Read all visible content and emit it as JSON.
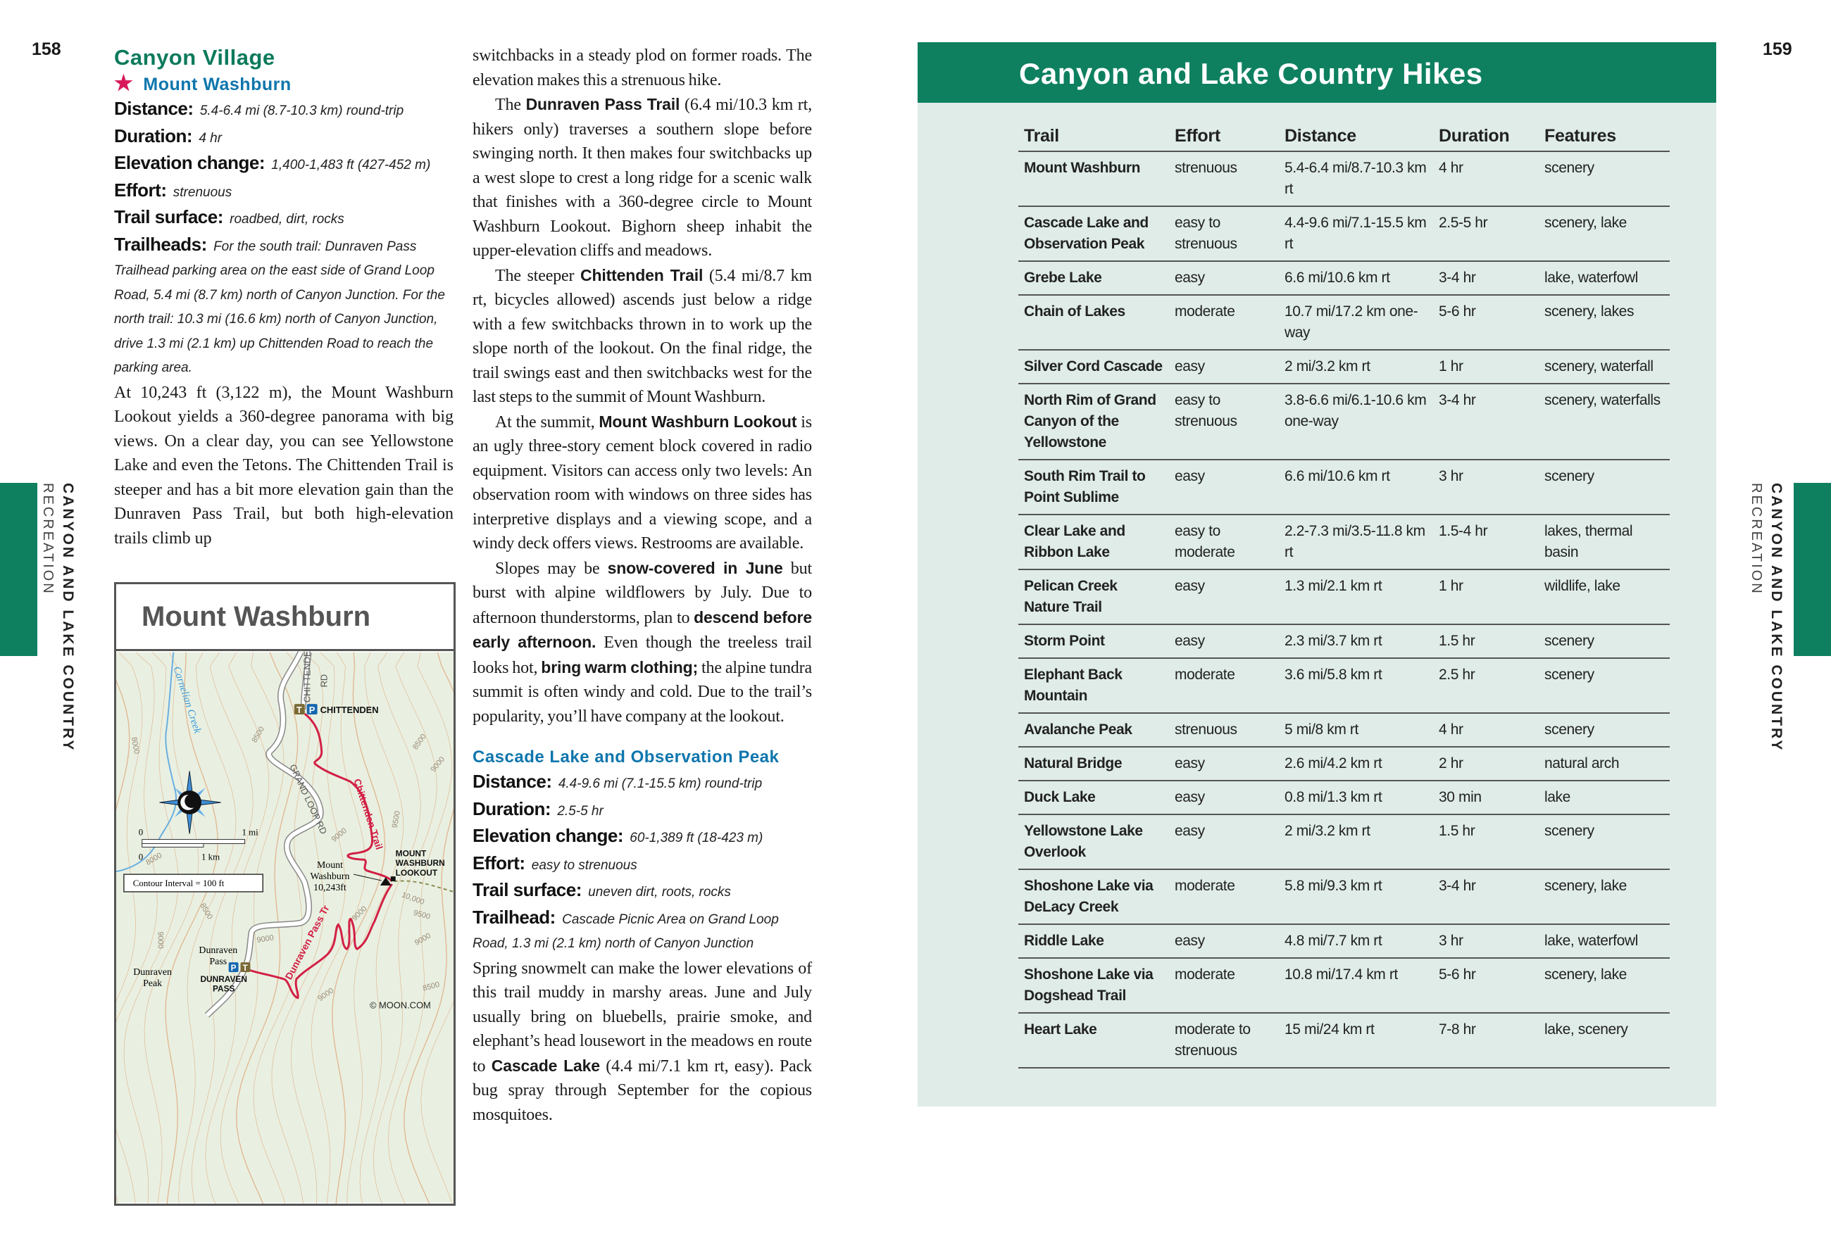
{
  "pages": {
    "left_number": "158",
    "right_number": "159"
  },
  "side_tab": {
    "chapter": "CANYON AND LAKE COUNTRY",
    "section": "RECREATION",
    "color": "#0e8060"
  },
  "left": {
    "section_title": "Canyon Village",
    "hike_title": "Mount Washburn",
    "star_icon": "star-icon",
    "specs": [
      {
        "label": "Distance:",
        "value": "5.4-6.4 mi (8.7-10.3 km) round-trip"
      },
      {
        "label": "Duration:",
        "value": "4 hr"
      },
      {
        "label": "Elevation change:",
        "value": "1,400-1,483 ft (427-452 m)"
      },
      {
        "label": "Effort:",
        "value": "strenuous"
      },
      {
        "label": "Trail surface:",
        "value": "roadbed, dirt, rocks"
      },
      {
        "label": "Trailheads:",
        "value": "For the south trail: Dunraven Pass Trailhead parking area on the east side of Grand Loop Road, 5.4 mi (8.7 km) north of Canyon Junction. For the north trail: 10.3 mi (16.6 km) north of Canyon Junction, drive 1.3 mi (2.1 km) up Chittenden Road to reach the parking area."
      }
    ],
    "paragraphs": [
      [
        {
          "text": "At 10,243 ft (3,122 m), the Mount Washburn Lookout yields a 360-degree panorama with big views. On a clear day, you can see Yellowstone Lake and even the Tetons. The Chittenden Trail is steeper and has a bit more elevation gain than the Dunraven Pass Trail, but both high-elevation trails climb up"
        }
      ]
    ]
  },
  "map": {
    "title": "Mount Washburn",
    "labels": {
      "creek": "Carnelian Creek",
      "chittenden_rd": "CHITTENDEN",
      "chittenden_rd2": "RD",
      "chittenden_th": "CHITTENDEN",
      "grand_loop": "GRAND LOOP RD",
      "chittenden_trail": "Chittenden Trail",
      "dunraven_trail": "Dunraven Pass Tr",
      "lookout1": "MOUNT",
      "lookout2": "WASHBURN",
      "lookout3": "LOOKOUT",
      "summit1": "Mount",
      "summit2": "Washburn",
      "summit3": "10,243ft",
      "pass1": "Dunraven",
      "pass2": "Pass",
      "pass_th1": "DUNRAVEN",
      "pass_th2": "PASS",
      "peak1": "Dunraven",
      "peak2": "Peak",
      "scale_zero": "0",
      "scale_mi": "1 mi",
      "scale_km": "1 km",
      "contour": "Contour Interval = 100 ft",
      "copyright": "© MOON.COM",
      "trailhead_icon": "T",
      "parking_icon": "P"
    },
    "elevations": [
      "8000",
      "8500",
      "8500",
      "9000",
      "9000",
      "9500",
      "8000",
      "8500",
      "9000",
      "9000",
      "10,000",
      "9500",
      "9000",
      "9000",
      "8500",
      "9000"
    ]
  },
  "middle": {
    "paragraphs": [
      [
        {
          "text": "switchbacks in a steady plod on former roads. The elevation makes this a strenuous hike."
        }
      ],
      [
        {
          "text": "The "
        },
        {
          "text": "Dunraven Pass Trail",
          "bold": true
        },
        {
          "text": " (6.4 mi/10.3 km rt, hikers only) traverses a southern slope before swinging north. It then makes four switchbacks up a west slope to crest a long ridge for a scenic walk that finishes with a 360-degree circle to Mount Washburn Lookout. Bighorn sheep inhabit the upper-elevation cliffs and meadows."
        }
      ],
      [
        {
          "text": "The steeper "
        },
        {
          "text": "Chittenden Trail",
          "bold": true
        },
        {
          "text": " (5.4 mi/8.7 km rt, bicycles allowed) ascends just below a ridge with a few switchbacks thrown in to work up the slope north of the lookout. On the final ridge, the trail swings east and then switchbacks west for the last steps to the summit of Mount Washburn."
        }
      ],
      [
        {
          "text": "At the summit, "
        },
        {
          "text": "Mount Washburn Lookout",
          "bold": true
        },
        {
          "text": " is an ugly three-story cement block covered in radio equipment. Visitors can access only two levels: An observation room with windows on three sides has interpretive displays and a viewing scope, and a windy deck offers views. Restrooms are available."
        }
      ],
      [
        {
          "text": "Slopes may be "
        },
        {
          "text": "snow-covered in June",
          "bold": true
        },
        {
          "text": " but burst with alpine wildflowers by July. Due to afternoon thunderstorms, plan to "
        },
        {
          "text": "descend before early afternoon.",
          "bold": true
        },
        {
          "text": " Even though the treeless trail looks hot, "
        },
        {
          "text": "bring warm clothing;",
          "bold": true
        },
        {
          "text": " the alpine tundra summit is often windy and cold. Due to the trail’s popularity, you’ll have company at the lookout."
        }
      ]
    ],
    "hike2_title": "Cascade Lake and Observation Peak",
    "specs": [
      {
        "label": "Distance:",
        "value": "4.4-9.6 mi (7.1-15.5 km) round-trip"
      },
      {
        "label": "Duration:",
        "value": "2.5-5 hr"
      },
      {
        "label": "Elevation change:",
        "value": "60-1,389 ft (18-423 m)"
      },
      {
        "label": "Effort:",
        "value": "easy to strenuous"
      },
      {
        "label": "Trail surface:",
        "value": "uneven dirt, roots, rocks"
      },
      {
        "label": "Trailhead:",
        "value": "Cascade Picnic Area on Grand Loop Road, 1.3 mi (2.1 km) north of Canyon Junction"
      }
    ],
    "paragraphs2": [
      [
        {
          "text": "Spring snowmelt can make the lower elevations of this trail muddy in marshy areas. June and July usually bring on bluebells, prairie smoke, and elephant’s head lousewort in the meadows en route to "
        },
        {
          "text": "Cascade Lake",
          "bold": true
        },
        {
          "text": " (4.4 mi/7.1 km rt, easy). Pack bug spray through September for the copious mosquitoes."
        }
      ]
    ]
  },
  "table": {
    "title": "Canyon and Lake Country Hikes",
    "columns": [
      "Trail",
      "Effort",
      "Distance",
      "Duration",
      "Features"
    ],
    "rows": [
      [
        "Mount Washburn",
        "strenuous",
        "5.4-6.4 mi/8.7-10.3 km rt",
        "4 hr",
        "scenery"
      ],
      [
        "Cascade Lake and Observation Peak",
        "easy to strenuous",
        "4.4-9.6 mi/7.1-15.5 km rt",
        "2.5-5 hr",
        "scenery, lake"
      ],
      [
        "Grebe Lake",
        "easy",
        "6.6 mi/10.6 km rt",
        "3-4 hr",
        "lake, waterfowl"
      ],
      [
        "Chain of Lakes",
        "moderate",
        "10.7 mi/17.2 km one-way",
        "5-6 hr",
        "scenery, lakes"
      ],
      [
        "Silver Cord Cascade",
        "easy",
        "2 mi/3.2 km rt",
        "1 hr",
        "scenery, waterfall"
      ],
      [
        "North Rim of Grand Canyon of the Yellowstone",
        "easy to strenuous",
        "3.8-6.6 mi/6.1-10.6 km one-way",
        "3-4 hr",
        "scenery, waterfalls"
      ],
      [
        "South Rim Trail to Point Sublime",
        "easy",
        "6.6 mi/10.6 km rt",
        "3 hr",
        "scenery"
      ],
      [
        "Clear Lake and Ribbon Lake",
        "easy to moderate",
        "2.2-7.3 mi/3.5-11.8 km rt",
        "1.5-4 hr",
        "lakes, thermal basin"
      ],
      [
        "Pelican Creek Nature Trail",
        "easy",
        "1.3 mi/2.1 km rt",
        "1 hr",
        "wildlife, lake"
      ],
      [
        "Storm Point",
        "easy",
        "2.3 mi/3.7 km rt",
        "1.5 hr",
        "scenery"
      ],
      [
        "Elephant Back Mountain",
        "moderate",
        "3.6 mi/5.8 km rt",
        "2.5 hr",
        "scenery"
      ],
      [
        "Avalanche Peak",
        "strenuous",
        "5 mi/8 km rt",
        "4 hr",
        "scenery"
      ],
      [
        "Natural Bridge",
        "easy",
        "2.6 mi/4.2 km rt",
        "2 hr",
        "natural arch"
      ],
      [
        "Duck Lake",
        "easy",
        "0.8 mi/1.3 km rt",
        "30 min",
        "lake"
      ],
      [
        "Yellowstone Lake Overlook",
        "easy",
        "2 mi/3.2 km rt",
        "1.5 hr",
        "scenery"
      ],
      [
        "Shoshone Lake via DeLacy Creek",
        "moderate",
        "5.8 mi/9.3 km rt",
        "3-4 hr",
        "scenery, lake"
      ],
      [
        "Riddle Lake",
        "easy",
        "4.8 mi/7.7 km rt",
        "3 hr",
        "lake, waterfowl"
      ],
      [
        "Shoshone Lake via Dogshead Trail",
        "moderate",
        "10.8 mi/17.4 km rt",
        "5-6 hr",
        "scenery, lake"
      ],
      [
        "Heart Lake",
        "moderate to strenuous",
        "15 mi/24 km rt",
        "7-8 hr",
        "lake, scenery"
      ]
    ]
  },
  "colors": {
    "green": "#0e8060",
    "table_bg": "#dfece7",
    "section_title": "#0b7a5c",
    "hike_title": "#0f76ad",
    "star": "#d8185a",
    "trail_red": "#d21f45",
    "map_bg": "#e9f0e1",
    "contour": "#e2b894"
  }
}
